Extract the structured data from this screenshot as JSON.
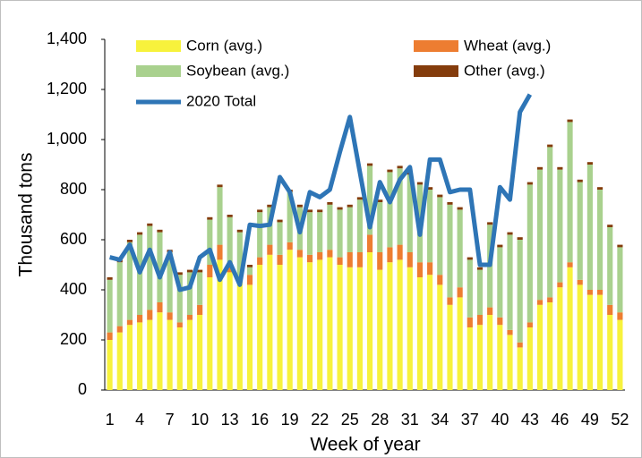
{
  "chart_data": {
    "type": "bar",
    "stacked": true,
    "y_label": "Thousand tons",
    "x_label": "Week of year",
    "x": [
      1,
      2,
      3,
      4,
      5,
      6,
      7,
      8,
      9,
      10,
      11,
      12,
      13,
      14,
      15,
      16,
      17,
      18,
      19,
      20,
      21,
      22,
      23,
      24,
      25,
      26,
      27,
      28,
      29,
      30,
      31,
      32,
      33,
      34,
      35,
      36,
      37,
      38,
      39,
      40,
      41,
      42,
      43,
      44,
      45,
      46,
      47,
      48,
      49,
      50,
      51,
      52
    ],
    "xlim": [
      0.5,
      52.5
    ],
    "xticks": [
      1,
      4,
      7,
      10,
      13,
      16,
      19,
      22,
      25,
      28,
      31,
      34,
      37,
      40,
      43,
      46,
      49,
      52
    ],
    "ylim": [
      0,
      1400
    ],
    "yticks": [
      0,
      200,
      400,
      600,
      800,
      {
        "value": 1000,
        "label": "1,000"
      },
      {
        "value": 1200,
        "label": "1,200"
      },
      {
        "value": 1400,
        "label": "1,400"
      }
    ],
    "series": [
      {
        "name": "Corn (avg.)",
        "color": "#f7f23c",
        "values": [
          200,
          230,
          260,
          270,
          280,
          310,
          280,
          250,
          280,
          300,
          450,
          520,
          470,
          430,
          420,
          500,
          540,
          500,
          560,
          530,
          510,
          520,
          530,
          500,
          490,
          490,
          550,
          480,
          510,
          520,
          490,
          450,
          460,
          420,
          340,
          370,
          250,
          260,
          300,
          260,
          220,
          170,
          250,
          340,
          350,
          410,
          490,
          420,
          380,
          380,
          300,
          280
        ]
      },
      {
        "name": "Wheat (avg.)",
        "color": "#ed7d31",
        "values": [
          30,
          25,
          20,
          30,
          40,
          40,
          30,
          20,
          20,
          40,
          50,
          60,
          40,
          20,
          40,
          30,
          40,
          40,
          30,
          30,
          30,
          30,
          30,
          30,
          60,
          60,
          70,
          70,
          60,
          60,
          60,
          60,
          50,
          40,
          30,
          40,
          40,
          40,
          30,
          30,
          20,
          20,
          20,
          20,
          20,
          20,
          20,
          20,
          20,
          20,
          40,
          30
        ]
      },
      {
        "name": "Soybean (avg.)",
        "color": "#a9d18e",
        "values": [
          210,
          255,
          310,
          320,
          335,
          280,
          240,
          190,
          170,
          130,
          180,
          230,
          180,
          180,
          30,
          180,
          150,
          130,
          200,
          170,
          170,
          160,
          180,
          190,
          180,
          210,
          275,
          200,
          300,
          305,
          310,
          310,
          290,
          310,
          370,
          310,
          230,
          180,
          330,
          280,
          380,
          410,
          550,
          520,
          600,
          450,
          560,
          390,
          500,
          400,
          310,
          260
        ]
      },
      {
        "name": "Other (avg.)",
        "color": "#843c0c",
        "values": [
          10,
          10,
          10,
          10,
          10,
          10,
          10,
          10,
          10,
          10,
          10,
          10,
          10,
          10,
          10,
          10,
          10,
          10,
          10,
          10,
          10,
          10,
          10,
          10,
          10,
          10,
          10,
          10,
          10,
          10,
          10,
          10,
          10,
          10,
          10,
          10,
          10,
          10,
          10,
          10,
          10,
          10,
          10,
          10,
          10,
          10,
          10,
          10,
          10,
          10,
          10,
          10
        ]
      },
      {
        "name": "2020 Total",
        "color": "#2e75b6",
        "type": "line",
        "values": [
          530,
          520,
          580,
          470,
          560,
          450,
          550,
          400,
          410,
          530,
          560,
          440,
          510,
          420,
          660,
          655,
          660,
          850,
          790,
          630,
          790,
          770,
          800,
          950,
          1090,
          870,
          650,
          830,
          750,
          840,
          890,
          620,
          920,
          920,
          790,
          800,
          800,
          500,
          500,
          810,
          760,
          1110,
          1180,
          null,
          null,
          null,
          null,
          null,
          null,
          null,
          null,
          null
        ]
      }
    ]
  }
}
